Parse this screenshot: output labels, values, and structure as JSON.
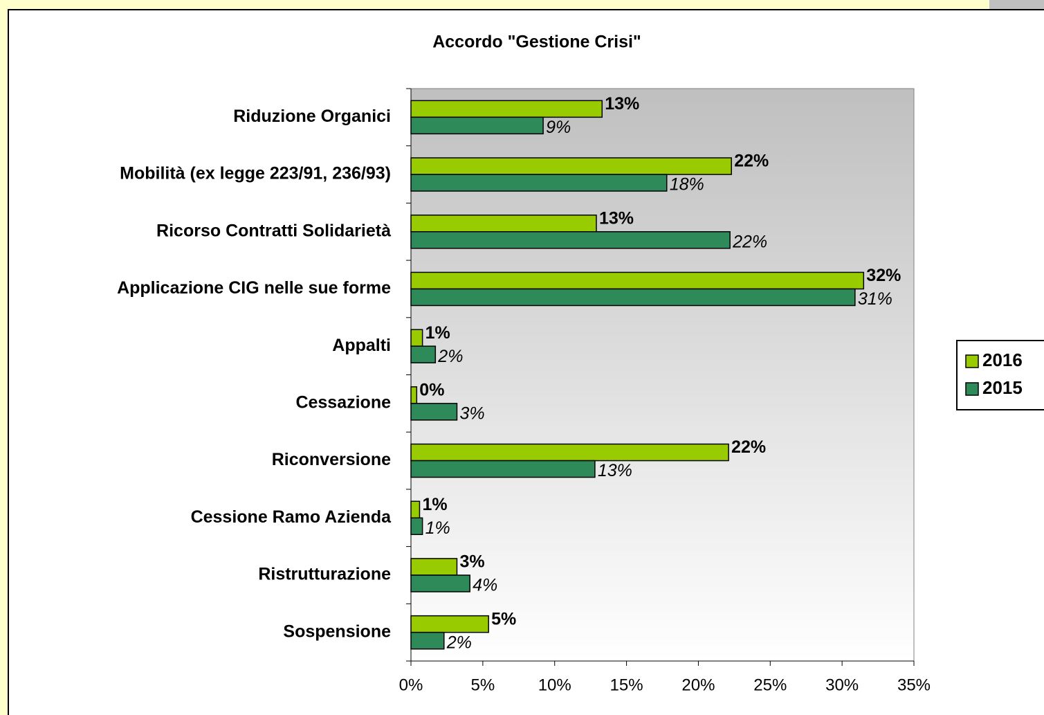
{
  "chart_data": {
    "type": "bar",
    "orientation": "horizontal",
    "title": "Accordo \"Gestione Crisi\"",
    "categories": [
      "Riduzione Organici",
      "Mobilità (ex legge  223/91, 236/93)",
      "Ricorso Contratti Solidarietà",
      "Applicazione CIG nelle sue forme",
      "Appalti",
      "Cessazione",
      "Riconversione",
      "Cessione Ramo Azienda",
      "Ristrutturazione",
      "Sospensione"
    ],
    "series": [
      {
        "name": "2016",
        "color": "#99cc00",
        "values": [
          13.3,
          22.3,
          12.9,
          31.5,
          0.8,
          0.4,
          22.1,
          0.6,
          3.2,
          5.4
        ],
        "value_labels": [
          "13%",
          "22%",
          "13%",
          "32%",
          "1%",
          "0%",
          "22%",
          "1%",
          "3%",
          "5%"
        ]
      },
      {
        "name": "2015",
        "color": "#2f8a5a",
        "values": [
          9.2,
          17.8,
          22.2,
          30.9,
          1.7,
          3.2,
          12.8,
          0.8,
          4.1,
          2.3
        ],
        "value_labels": [
          "9%",
          "18%",
          "22%",
          "31%",
          "2%",
          "3%",
          "13%",
          "1%",
          "4%",
          "2%"
        ]
      }
    ],
    "xlim": [
      0,
      35
    ],
    "xticks": [
      {
        "value": 0,
        "label": "0%"
      },
      {
        "value": 5,
        "label": "5%"
      },
      {
        "value": 10,
        "label": "10%"
      },
      {
        "value": 15,
        "label": "15%"
      },
      {
        "value": 20,
        "label": "20%"
      },
      {
        "value": 25,
        "label": "25%"
      },
      {
        "value": 30,
        "label": "30%"
      },
      {
        "value": 35,
        "label": "35%"
      }
    ],
    "grid": false,
    "legend": "right"
  }
}
